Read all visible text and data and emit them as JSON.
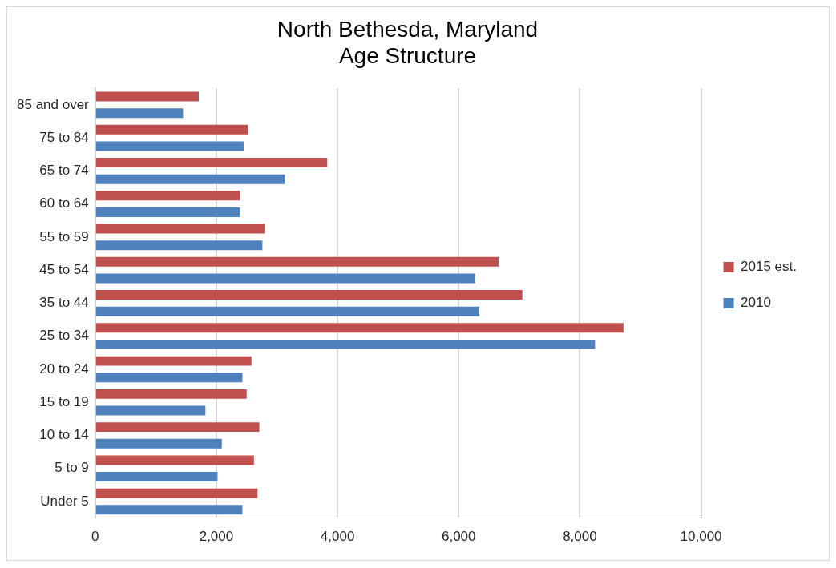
{
  "chart_data": {
    "type": "bar",
    "orientation": "horizontal",
    "title": "North Bethesda, Maryland\nAge Structure",
    "categories": [
      "85 and over",
      "75 to 84",
      "65 to 74",
      "60 to 64",
      "55 to 59",
      "45 to 54",
      "35 to 44",
      "25 to 34",
      "20 to 24",
      "15 to 19",
      "10 to 14",
      "5 to 9",
      "Under 5"
    ],
    "series": [
      {
        "name": "2015 est.",
        "color": "#c0504d",
        "values": [
          1710,
          2520,
          3830,
          2390,
          2800,
          6660,
          7050,
          8720,
          2580,
          2500,
          2710,
          2620,
          2680
        ]
      },
      {
        "name": "2010",
        "color": "#4f81bd",
        "values": [
          1450,
          2450,
          3130,
          2390,
          2760,
          6270,
          6340,
          8250,
          2430,
          1820,
          2090,
          2020,
          2430
        ]
      }
    ],
    "xlim": [
      0,
      10000
    ],
    "xticks": [
      {
        "value": 0,
        "label": "0"
      },
      {
        "value": 2000,
        "label": "2,000"
      },
      {
        "value": 4000,
        "label": "4,000"
      },
      {
        "value": 6000,
        "label": "6,000"
      },
      {
        "value": 8000,
        "label": "8,000"
      },
      {
        "value": 10000,
        "label": "10,000"
      }
    ],
    "grid": "x",
    "legend": "right"
  }
}
